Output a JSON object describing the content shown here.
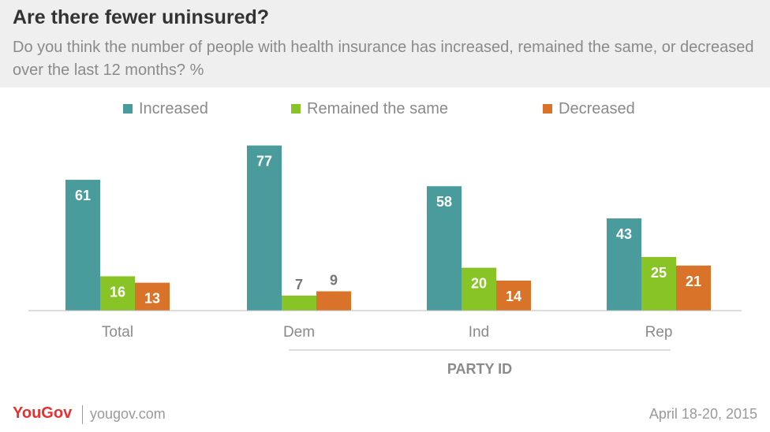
{
  "header": {
    "title": "Are there fewer uninsured?",
    "subtitle": "Do you think the number of people with health insurance has increased, remained the same, or decreased over the last 12 months? %"
  },
  "footer": {
    "logo": "YouGov",
    "url": "yougov.com",
    "date": "April 18-20, 2015"
  },
  "colors": {
    "increased": "#4a9c9c",
    "remained": "#88c425",
    "decreased": "#d9732a"
  },
  "chart_data": {
    "type": "bar",
    "categories": [
      "Total",
      "Dem",
      "Ind",
      "Rep"
    ],
    "group_label": "PARTY ID",
    "series": [
      {
        "name": "Increased",
        "values": [
          61,
          77,
          58,
          43
        ]
      },
      {
        "name": "Remained the same",
        "values": [
          16,
          7,
          20,
          25
        ]
      },
      {
        "name": "Decreased",
        "values": [
          13,
          9,
          14,
          21
        ]
      }
    ],
    "grid": false,
    "legend": "top"
  }
}
